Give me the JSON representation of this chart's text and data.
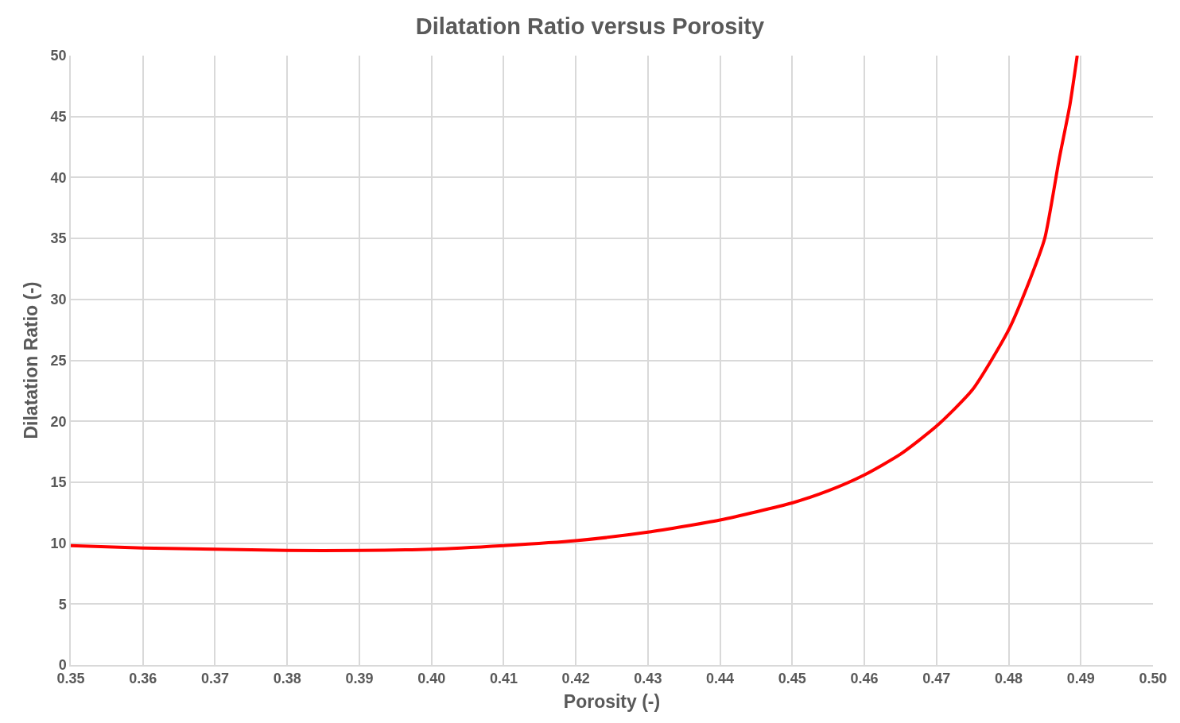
{
  "chart_data": {
    "type": "line",
    "title": "Dilatation Ratio versus Porosity",
    "xlabel": "Porosity (-)",
    "ylabel": "Dilatation Ratio (-)",
    "x": [
      0.35,
      0.36,
      0.37,
      0.38,
      0.39,
      0.4,
      0.41,
      0.42,
      0.43,
      0.44,
      0.45,
      0.455,
      0.46,
      0.465,
      0.47,
      0.475,
      0.48,
      0.483,
      0.485,
      0.487,
      0.4885,
      0.4895
    ],
    "series": [
      {
        "color": "#ff0000",
        "values": [
          9.8,
          9.6,
          9.5,
          9.4,
          9.4,
          9.5,
          9.8,
          10.2,
          10.9,
          11.9,
          13.3,
          14.3,
          15.6,
          17.3,
          19.6,
          22.6,
          27.5,
          31.7,
          35.0,
          41.5,
          46.0,
          50.0
        ]
      }
    ],
    "xlim": [
      0.35,
      0.5
    ],
    "xticks": [
      {
        "value": 0.35,
        "label": "0.35"
      },
      {
        "value": 0.36,
        "label": "0.36"
      },
      {
        "value": 0.37,
        "label": "0.37"
      },
      {
        "value": 0.38,
        "label": "0.38"
      },
      {
        "value": 0.39,
        "label": "0.39"
      },
      {
        "value": 0.4,
        "label": "0.40"
      },
      {
        "value": 0.41,
        "label": "0.41"
      },
      {
        "value": 0.42,
        "label": "0.42"
      },
      {
        "value": 0.43,
        "label": "0.43"
      },
      {
        "value": 0.44,
        "label": "0.44"
      },
      {
        "value": 0.45,
        "label": "0.45"
      },
      {
        "value": 0.46,
        "label": "0.46"
      },
      {
        "value": 0.47,
        "label": "0.47"
      },
      {
        "value": 0.48,
        "label": "0.48"
      },
      {
        "value": 0.49,
        "label": "0.49"
      },
      {
        "value": 0.5,
        "label": "0.50"
      }
    ],
    "ylim": [
      0,
      50
    ],
    "yticks": [
      0,
      5,
      10,
      15,
      20,
      25,
      30,
      35,
      40,
      45,
      50
    ],
    "grid": true,
    "marker": "none",
    "line_style": "solid"
  }
}
